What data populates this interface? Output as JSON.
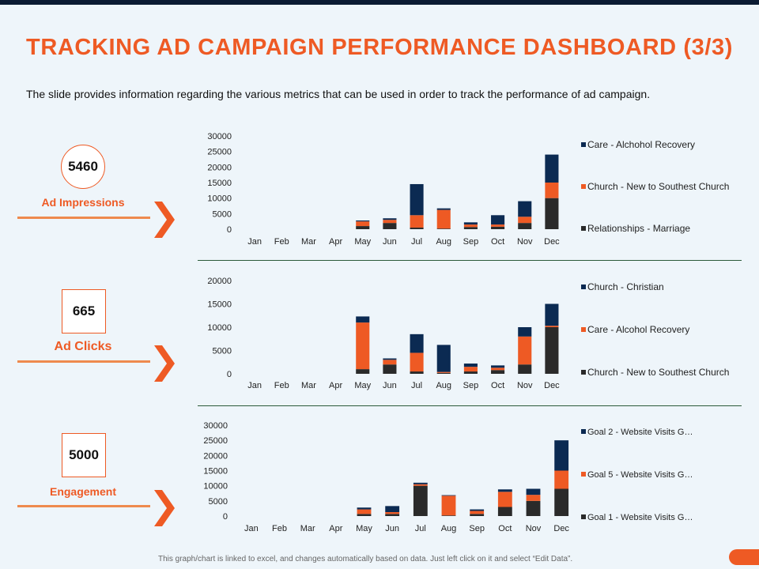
{
  "header": {
    "title": "TRACKING AD CAMPAIGN PERFORMANCE DASHBOARD (3/3)",
    "subtitle": "The slide provides information regarding the various metrics that can be used in order to track the performance of ad campaign."
  },
  "kpis": [
    {
      "value": "5460",
      "label": "Ad Impressions"
    },
    {
      "value": "665",
      "label": "Ad Clicks"
    },
    {
      "value": "5000",
      "label": "Engagement"
    }
  ],
  "footer": {
    "note": "This graph/chart is linked to excel, and changes automatically based on data. Just left click on it and select “Edit Data”."
  },
  "colors": {
    "accent": "#ee5a24",
    "navy": "#0b2a52",
    "dark": "#2a2a2a",
    "text": "#111111"
  },
  "chart_data": [
    {
      "type": "bar",
      "stacked": true,
      "title": "",
      "categories": [
        "Jan",
        "Feb",
        "Mar",
        "Apr",
        "May",
        "Jun",
        "Jul",
        "Aug",
        "Sep",
        "Oct",
        "Nov",
        "Dec"
      ],
      "ylim": [
        0,
        30000
      ],
      "yticks": [
        "30000",
        "25000",
        "20000",
        "15000",
        "10000",
        "5000",
        "0"
      ],
      "legend_position": "right",
      "series": [
        {
          "name": "Relationships - Marriage",
          "values": [
            0,
            0,
            0,
            0,
            1000,
            2000,
            500,
            200,
            700,
            800,
            2000,
            10000
          ]
        },
        {
          "name": "Church - New to Southest Church",
          "values": [
            0,
            0,
            0,
            0,
            1500,
            1000,
            4000,
            6000,
            800,
            700,
            2000,
            5000
          ]
        },
        {
          "name": "Care - Alchohol Recovery",
          "values": [
            0,
            0,
            0,
            0,
            300,
            500,
            10000,
            500,
            700,
            3000,
            5000,
            9000
          ]
        }
      ]
    },
    {
      "type": "bar",
      "stacked": true,
      "title": "",
      "categories": [
        "Jan",
        "Feb",
        "Mar",
        "Apr",
        "May",
        "Jun",
        "Jul",
        "Aug",
        "Sep",
        "Oct",
        "Nov",
        "Dec"
      ],
      "ylim": [
        0,
        20000
      ],
      "yticks": [
        "20000",
        "15000",
        "10000",
        "5000",
        "0"
      ],
      "legend_position": "right",
      "series": [
        {
          "name": "Church - New to Southest Church",
          "values": [
            0,
            0,
            0,
            0,
            1000,
            2000,
            500,
            200,
            500,
            800,
            2000,
            10000
          ]
        },
        {
          "name": "Care - Alcohol Recovery",
          "values": [
            0,
            0,
            0,
            0,
            10000,
            1000,
            4000,
            200,
            1000,
            500,
            6000,
            300
          ]
        },
        {
          "name": "Church - Christian",
          "values": [
            0,
            0,
            0,
            0,
            1300,
            300,
            4000,
            5800,
            700,
            500,
            2000,
            4700
          ]
        }
      ]
    },
    {
      "type": "bar",
      "stacked": true,
      "title": "",
      "categories": [
        "Jan",
        "Feb",
        "Mar",
        "Apr",
        "May",
        "Jun",
        "Jul",
        "Aug",
        "Sep",
        "Oct",
        "Nov",
        "Dec"
      ],
      "ylim": [
        0,
        30000
      ],
      "yticks": [
        "30000",
        "25000",
        "20000",
        "15000",
        "10000",
        "5000",
        "0"
      ],
      "legend_position": "right",
      "series": [
        {
          "name": "Goal 1 - Website Visits G…",
          "values": [
            0,
            0,
            0,
            0,
            700,
            700,
            10000,
            200,
            700,
            3000,
            5000,
            9000
          ]
        },
        {
          "name": "Goal 5 - Website Visits G…",
          "values": [
            0,
            0,
            0,
            0,
            1500,
            600,
            500,
            6500,
            1000,
            5000,
            2000,
            6000
          ]
        },
        {
          "name": "Goal 2 - Website Visits G…",
          "values": [
            0,
            0,
            0,
            0,
            600,
            2000,
            500,
            200,
            500,
            800,
            2000,
            10000
          ]
        }
      ]
    }
  ]
}
